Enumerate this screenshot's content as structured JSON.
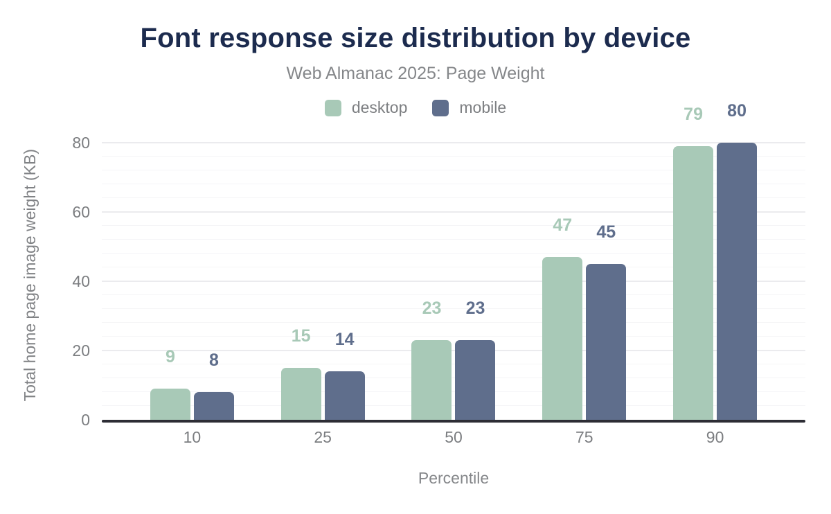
{
  "chart_data": {
    "type": "bar",
    "title": "Font response size distribution by device",
    "subtitle": "Web Almanac 2025: Page Weight",
    "xlabel": "Percentile",
    "ylabel": "Total home page image weight (KB)",
    "categories": [
      "10",
      "25",
      "50",
      "75",
      "90"
    ],
    "series": [
      {
        "name": "desktop",
        "color": "#a8c9b7",
        "values": [
          9,
          15,
          23,
          47,
          79
        ]
      },
      {
        "name": "mobile",
        "color": "#5f6e8c",
        "values": [
          8,
          14,
          23,
          45,
          80
        ]
      }
    ],
    "ylim": [
      0,
      84
    ],
    "yticks": [
      0,
      20,
      40,
      60,
      80
    ],
    "minor_grid_step": 4,
    "grid": "horizontal",
    "legend_position": "top",
    "data_labels": true
  },
  "style": {
    "title_color": "#1c2b4e",
    "subtitle_color": "#85878a",
    "tick_color": "#7b7d80",
    "axis_line_color": "#2d2d35",
    "major_grid_color": "#ebebee",
    "minor_grid_color": "#f5f5f7",
    "background": "#ffffff"
  }
}
